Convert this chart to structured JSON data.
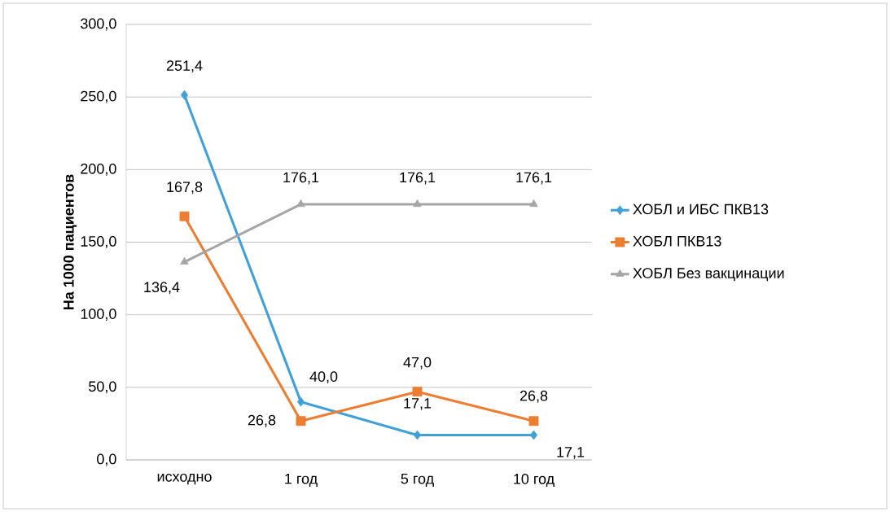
{
  "chart_data": {
    "type": "line",
    "ylabel": "На 1000 пациентов",
    "categories": [
      "исходно",
      "1 год",
      "5 год",
      "10 год"
    ],
    "series": [
      {
        "name": "ХОБЛ и ИБС ПКВ13",
        "color": "#41a0d8",
        "marker": "diamond",
        "values": [
          251.4,
          40.0,
          17.1,
          17.1
        ],
        "value_labels": [
          "251,4",
          "40,0",
          "17,1",
          "17,1"
        ]
      },
      {
        "name": "ХОБЛ ПКВ13",
        "color": "#ed7d31",
        "marker": "square",
        "values": [
          167.8,
          26.8,
          47.0,
          26.8
        ],
        "value_labels": [
          "167,8",
          "26,8",
          "47,0",
          "26,8"
        ]
      },
      {
        "name": "ХОБЛ Без вакцинации",
        "color": "#a5a5a5",
        "marker": "triangle",
        "values": [
          136.4,
          176.1,
          176.1,
          176.1
        ],
        "value_labels": [
          "136,4",
          "176,1",
          "176,1",
          "176,1"
        ]
      }
    ],
    "ylim": [
      0,
      300
    ],
    "yticks": [
      {
        "value": 0,
        "label": "0,0"
      },
      {
        "value": 50,
        "label": "50,0"
      },
      {
        "value": 100,
        "label": "100,0"
      },
      {
        "value": 150,
        "label": "150,0"
      },
      {
        "value": 200,
        "label": "200,0"
      },
      {
        "value": 250,
        "label": "250,0"
      },
      {
        "value": 300,
        "label": "300,0"
      }
    ],
    "grid": "y",
    "legend": "right",
    "line_style": "solid"
  }
}
